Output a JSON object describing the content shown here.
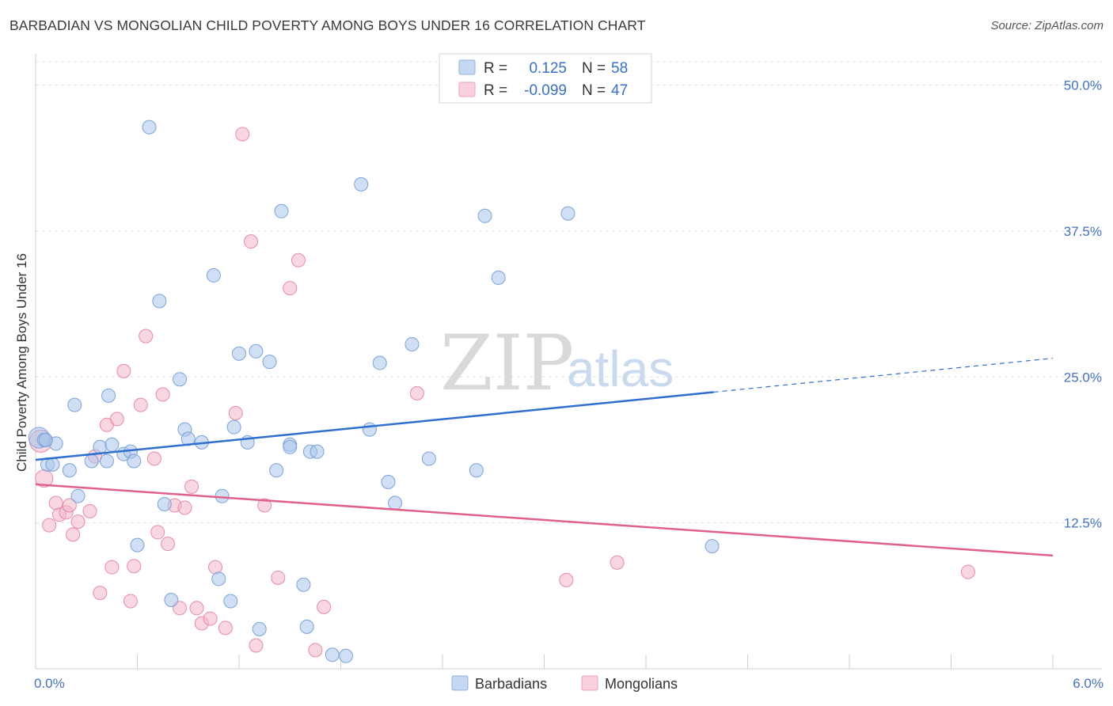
{
  "header": {
    "title": "BARBADIAN VS MONGOLIAN CHILD POVERTY AMONG BOYS UNDER 16 CORRELATION CHART",
    "source": "Source: ZipAtlas.com"
  },
  "watermark": {
    "zip": "ZIP",
    "atlas": "atlas"
  },
  "legend": {
    "rows": [
      {
        "r_label": "R =",
        "r_value": "0.125",
        "n_label": "N =",
        "n_value": "58",
        "color": "#a9c4ea"
      },
      {
        "r_label": "R =",
        "r_value": "-0.099",
        "n_label": "N =",
        "n_value": "47",
        "color": "#f4b6c8"
      }
    ]
  },
  "bottom_legend": [
    "Barbadians",
    "Mongolians"
  ],
  "chart_data": {
    "type": "scatter",
    "title": "BARBADIAN VS MONGOLIAN CHILD POVERTY AMONG BOYS UNDER 16 CORRELATION CHART",
    "xlabel": "",
    "ylabel": "Child Poverty Among Boys Under 16",
    "xlim": [
      0,
      6
    ],
    "ylim": [
      0,
      52
    ],
    "x_tick_labels": [
      "0.0%",
      "6.0%"
    ],
    "y_ticks": [
      12.5,
      25.0,
      37.5,
      50.0
    ],
    "y_tick_labels": [
      "12.5%",
      "25.0%",
      "37.5%",
      "50.0%"
    ],
    "grid": true,
    "legend_position": "top-center",
    "series": [
      {
        "name": "Barbadians",
        "color": "#a9c4ea",
        "stroke": "#7aa3dc",
        "trend": {
          "x0": 0,
          "y0": 17.9,
          "x1": 4.0,
          "y1": 23.7,
          "x_dash_end": 6.0,
          "y_dash_end": 26.6,
          "color": "#2f6fd0"
        },
        "points": [
          [
            0.02,
            19.8
          ],
          [
            0.05,
            19.6
          ],
          [
            0.07,
            17.5
          ],
          [
            0.1,
            17.5
          ],
          [
            0.2,
            17.0
          ],
          [
            0.12,
            19.3
          ],
          [
            0.23,
            22.6
          ],
          [
            0.25,
            14.8
          ],
          [
            0.33,
            17.8
          ],
          [
            0.38,
            19.0
          ],
          [
            0.45,
            19.2
          ],
          [
            0.52,
            18.4
          ],
          [
            0.42,
            17.8
          ],
          [
            0.56,
            18.6
          ],
          [
            0.58,
            17.8
          ],
          [
            0.43,
            23.4
          ],
          [
            0.67,
            46.4
          ],
          [
            0.73,
            31.5
          ],
          [
            0.76,
            14.1
          ],
          [
            0.8,
            5.9
          ],
          [
            0.85,
            24.8
          ],
          [
            0.88,
            20.5
          ],
          [
            0.9,
            19.7
          ],
          [
            0.98,
            19.4
          ],
          [
            1.05,
            33.7
          ],
          [
            1.08,
            7.7
          ],
          [
            1.1,
            14.8
          ],
          [
            1.15,
            5.8
          ],
          [
            1.17,
            20.7
          ],
          [
            1.2,
            27.0
          ],
          [
            1.25,
            19.4
          ],
          [
            1.3,
            27.2
          ],
          [
            1.38,
            26.3
          ],
          [
            1.42,
            17.0
          ],
          [
            1.45,
            39.2
          ],
          [
            1.5,
            19.2
          ],
          [
            1.58,
            7.2
          ],
          [
            1.62,
            18.6
          ],
          [
            1.66,
            18.6
          ],
          [
            1.6,
            3.6
          ],
          [
            1.75,
            1.2
          ],
          [
            1.83,
            1.1
          ],
          [
            1.5,
            19.0
          ],
          [
            1.92,
            41.5
          ],
          [
            1.97,
            20.5
          ],
          [
            2.03,
            26.2
          ],
          [
            2.08,
            16.0
          ],
          [
            2.12,
            14.2
          ],
          [
            2.22,
            27.8
          ],
          [
            2.32,
            18.0
          ],
          [
            2.6,
            17.0
          ],
          [
            2.65,
            38.8
          ],
          [
            2.73,
            33.5
          ],
          [
            3.14,
            39.0
          ],
          [
            1.32,
            3.4
          ],
          [
            3.99,
            10.5
          ],
          [
            0.6,
            10.6
          ],
          [
            0.06,
            19.6
          ]
        ]
      },
      {
        "name": "Mongolians",
        "color": "#f4b6c8",
        "stroke": "#e98aa6",
        "trend": {
          "x0": 0,
          "y0": 15.8,
          "x1": 6.0,
          "y1": 9.7,
          "color": "#e0608a"
        },
        "points": [
          [
            0.03,
            19.5
          ],
          [
            0.05,
            16.3
          ],
          [
            0.08,
            12.3
          ],
          [
            0.12,
            14.2
          ],
          [
            0.14,
            13.2
          ],
          [
            0.18,
            13.4
          ],
          [
            0.2,
            14.0
          ],
          [
            0.22,
            11.5
          ],
          [
            0.25,
            12.6
          ],
          [
            0.32,
            13.5
          ],
          [
            0.35,
            18.2
          ],
          [
            0.38,
            6.5
          ],
          [
            0.42,
            20.9
          ],
          [
            0.45,
            8.7
          ],
          [
            0.48,
            21.4
          ],
          [
            0.52,
            25.5
          ],
          [
            0.56,
            5.8
          ],
          [
            0.58,
            8.8
          ],
          [
            0.62,
            22.6
          ],
          [
            0.65,
            28.5
          ],
          [
            0.7,
            18.0
          ],
          [
            0.72,
            11.7
          ],
          [
            0.75,
            23.5
          ],
          [
            0.78,
            10.7
          ],
          [
            0.82,
            14.0
          ],
          [
            0.85,
            5.2
          ],
          [
            0.88,
            13.8
          ],
          [
            0.92,
            15.6
          ],
          [
            0.95,
            5.2
          ],
          [
            0.98,
            3.9
          ],
          [
            1.03,
            4.3
          ],
          [
            1.06,
            8.7
          ],
          [
            1.12,
            3.5
          ],
          [
            1.18,
            21.9
          ],
          [
            1.22,
            45.8
          ],
          [
            1.27,
            36.6
          ],
          [
            1.3,
            2.0
          ],
          [
            1.35,
            14.0
          ],
          [
            1.43,
            7.8
          ],
          [
            1.5,
            32.6
          ],
          [
            1.55,
            35.0
          ],
          [
            1.65,
            1.6
          ],
          [
            1.7,
            5.3
          ],
          [
            2.25,
            23.6
          ],
          [
            3.13,
            7.6
          ],
          [
            3.43,
            9.1
          ],
          [
            5.5,
            8.3
          ]
        ]
      }
    ]
  }
}
